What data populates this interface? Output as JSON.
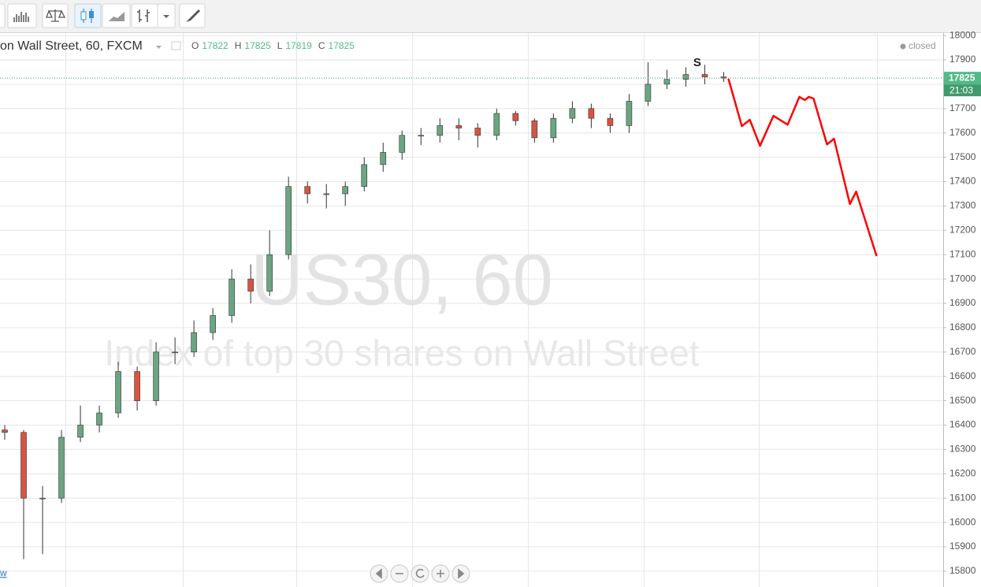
{
  "chart_data": {
    "type": "candlestick",
    "title": "on Wall Street, 60, FXCM",
    "watermark": "US30, 60",
    "subtitle": "Index of top 30 shares on Wall Street",
    "status": "closed",
    "ohlc_legend": [
      {
        "label": "O",
        "value": 17822
      },
      {
        "label": "H",
        "value": 17825
      },
      {
        "label": "L",
        "value": 17819
      },
      {
        "label": "C",
        "value": 17825
      }
    ],
    "last_price": 17825,
    "countdown": "21:03",
    "link_text": "w",
    "annotation": {
      "text": "S",
      "x": 36.6,
      "y": 17887
    },
    "up_color": "#6ba583",
    "down_color": "#d75442",
    "xlim": [
      -0.25,
      49.6
    ],
    "ylim": [
      15735,
      18010
    ],
    "yticks": [
      15800,
      15900,
      16000,
      16100,
      16200,
      16300,
      16400,
      16500,
      16600,
      16700,
      16800,
      16900,
      17000,
      17100,
      17200,
      17300,
      17400,
      17500,
      17600,
      17700,
      17800,
      17900,
      18000
    ],
    "grid": true,
    "x": [
      0,
      1,
      2,
      3,
      4,
      5,
      6,
      7,
      8,
      9,
      10,
      11,
      12,
      13,
      14,
      15,
      16,
      17,
      18,
      19,
      20,
      21,
      22,
      23,
      24,
      25,
      26,
      27,
      28,
      29,
      30,
      31,
      32,
      33,
      34,
      35,
      36,
      37,
      38
    ],
    "open": [
      16380,
      16370,
      16100,
      16100,
      16350,
      16400,
      16450,
      16620,
      16500,
      16700,
      16700,
      16780,
      16850,
      17000,
      16950,
      17100,
      17380,
      17350,
      17350,
      17380,
      17470,
      17520,
      17590,
      17590,
      17630,
      17620,
      17590,
      17680,
      17650,
      17580,
      17660,
      17700,
      17660,
      17630,
      17730,
      17800,
      17820,
      17840,
      17830
    ],
    "high": [
      16400,
      16380,
      16150,
      16380,
      16480,
      16480,
      16660,
      16640,
      16740,
      16760,
      16830,
      16880,
      17040,
      17060,
      17200,
      17420,
      17400,
      17390,
      17400,
      17500,
      17560,
      17610,
      17620,
      17660,
      17660,
      17640,
      17700,
      17690,
      17660,
      17680,
      17730,
      17720,
      17680,
      17760,
      17890,
      17860,
      17870,
      17880,
      17850
    ],
    "low": [
      16340,
      15850,
      15870,
      16080,
      16330,
      16370,
      16430,
      16460,
      16480,
      16650,
      16680,
      16750,
      16820,
      16900,
      16930,
      17080,
      17310,
      17290,
      17300,
      17360,
      17440,
      17490,
      17550,
      17560,
      17570,
      17540,
      17570,
      17630,
      17560,
      17560,
      17640,
      17620,
      17600,
      17600,
      17710,
      17780,
      17790,
      17800,
      17810
    ],
    "close": [
      16370,
      16100,
      16100,
      16350,
      16400,
      16450,
      16620,
      16500,
      16700,
      16700,
      16780,
      16850,
      17000,
      16950,
      17100,
      17380,
      17350,
      17350,
      17380,
      17470,
      17520,
      17590,
      17590,
      17630,
      17620,
      17590,
      17680,
      17650,
      17580,
      17660,
      17700,
      17660,
      17630,
      17730,
      17800,
      17820,
      17840,
      17830,
      17825
    ],
    "projection": {
      "color": "#ff0000",
      "x": [
        38.25,
        38.96,
        39.38,
        39.92,
        40.63,
        41.38,
        42,
        42.29,
        42.5,
        42.75,
        43.46,
        43.83,
        44.67,
        45,
        46.08
      ],
      "values": [
        17822,
        17628,
        17654,
        17547,
        17670,
        17634,
        17748,
        17735,
        17748,
        17741,
        17553,
        17576,
        17308,
        17359,
        17094
      ]
    }
  }
}
